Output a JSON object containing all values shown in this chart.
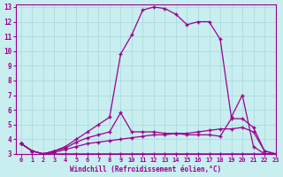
{
  "xlabel": "Windchill (Refroidissement éolien,°C)",
  "bg_color": "#c8eef0",
  "line_color": "#9b0090",
  "grid_color": "#a8d8d8",
  "xlim": [
    -0.5,
    23
  ],
  "ylim": [
    3,
    13.2
  ],
  "xticks": [
    0,
    1,
    2,
    3,
    4,
    5,
    6,
    7,
    8,
    9,
    10,
    11,
    12,
    13,
    14,
    15,
    16,
    17,
    18,
    19,
    20,
    21,
    22,
    23
  ],
  "yticks": [
    3,
    4,
    5,
    6,
    7,
    8,
    9,
    10,
    11,
    12,
    13
  ],
  "lines": [
    [
      3.7,
      3.2,
      3.0,
      3.0,
      3.0,
      3.0,
      3.0,
      3.0,
      3.0,
      3.0,
      3.0,
      3.0,
      3.0,
      3.0,
      3.0,
      3.0,
      3.0,
      3.0,
      3.0,
      3.0,
      3.0,
      3.0,
      3.0,
      3.0
    ],
    [
      3.7,
      3.2,
      3.0,
      3.1,
      3.3,
      3.5,
      3.7,
      3.8,
      3.9,
      4.0,
      4.1,
      4.2,
      4.3,
      4.3,
      4.4,
      4.4,
      4.5,
      4.6,
      4.7,
      4.7,
      4.8,
      4.5,
      3.2,
      3.0
    ],
    [
      3.7,
      3.2,
      3.0,
      3.2,
      3.4,
      3.8,
      4.1,
      4.3,
      4.5,
      5.8,
      4.5,
      4.5,
      4.5,
      4.4,
      4.4,
      4.3,
      4.3,
      4.3,
      4.2,
      5.4,
      5.4,
      4.8,
      3.2,
      3.0
    ],
    [
      3.7,
      3.2,
      3.0,
      3.2,
      3.5,
      4.0,
      4.5,
      5.0,
      5.5,
      9.8,
      11.1,
      12.8,
      13.0,
      12.9,
      12.5,
      11.8,
      12.0,
      12.0,
      10.8,
      5.5,
      7.0,
      3.5,
      3.0,
      3.0
    ]
  ]
}
